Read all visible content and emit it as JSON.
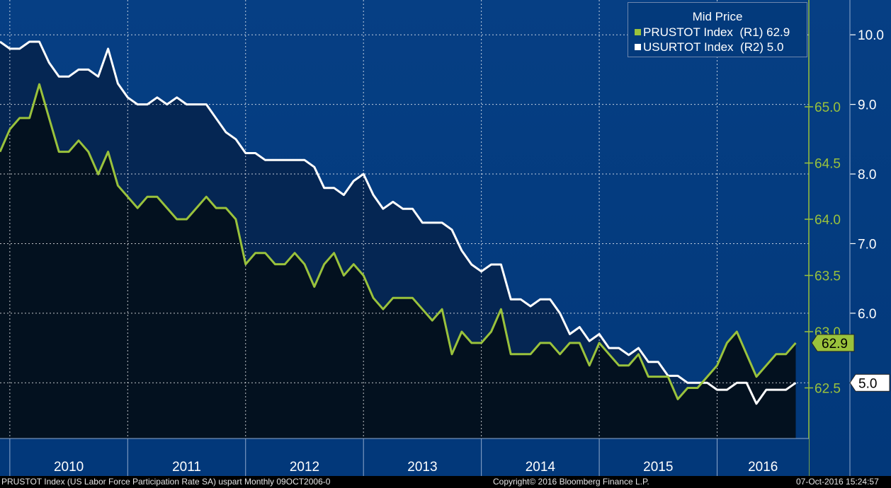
{
  "chart_data": {
    "type": "line",
    "legend_title": "Mid Price",
    "legend_position": "top-right",
    "grid": true,
    "x_labels": [
      "2010",
      "2011",
      "2012",
      "2013",
      "2014",
      "2015",
      "2016"
    ],
    "xlim": [
      "2009-12",
      "2016-09"
    ],
    "axes": {
      "R1": {
        "ticks": [
          "62.5",
          "63.0",
          "63.5",
          "64.0",
          "64.5",
          "65.0"
        ],
        "ylim": [
          62.05,
          65.95
        ]
      },
      "R2": {
        "ticks": [
          "5.0",
          "6.0",
          "7.0",
          "8.0",
          "9.0",
          "10.0"
        ],
        "ylim": [
          4.2,
          10.5
        ]
      }
    },
    "series": [
      {
        "name": "PRUSTOT Index  (R1) 62.9",
        "axis": "R1",
        "color": "#9ac23c",
        "last_value": "62.9",
        "x_start": "2009-12",
        "values": [
          64.6,
          64.8,
          64.9,
          64.9,
          65.2,
          64.9,
          64.6,
          64.6,
          64.7,
          64.6,
          64.4,
          64.6,
          64.3,
          64.2,
          64.1,
          64.2,
          64.2,
          64.1,
          64.0,
          64.0,
          64.1,
          64.2,
          64.1,
          64.1,
          64.0,
          63.6,
          63.7,
          63.7,
          63.6,
          63.6,
          63.7,
          63.6,
          63.4,
          63.6,
          63.7,
          63.5,
          63.6,
          63.5,
          63.3,
          63.2,
          63.3,
          63.3,
          63.3,
          63.2,
          63.1,
          63.2,
          62.8,
          63.0,
          62.9,
          62.9,
          63.0,
          63.2,
          62.8,
          62.8,
          62.8,
          62.9,
          62.9,
          62.8,
          62.9,
          62.9,
          62.7,
          62.9,
          62.8,
          62.7,
          62.7,
          62.8,
          62.6,
          62.6,
          62.6,
          62.4,
          62.5,
          62.5,
          62.6,
          62.7,
          62.9,
          63.0,
          62.8,
          62.6,
          62.7,
          62.8,
          62.8,
          62.9
        ]
      },
      {
        "name": "USURTOT Index  (R2) 5.0",
        "axis": "R2",
        "color": "#ffffff",
        "last_value": "5.0",
        "x_start": "2009-12",
        "values": [
          9.9,
          9.8,
          9.8,
          9.9,
          9.9,
          9.6,
          9.4,
          9.4,
          9.5,
          9.5,
          9.4,
          9.8,
          9.3,
          9.1,
          9.0,
          9.0,
          9.1,
          9.0,
          9.1,
          9.0,
          9.0,
          9.0,
          8.8,
          8.6,
          8.5,
          8.3,
          8.3,
          8.2,
          8.2,
          8.2,
          8.2,
          8.2,
          8.1,
          7.8,
          7.8,
          7.7,
          7.9,
          8.0,
          7.7,
          7.5,
          7.6,
          7.5,
          7.5,
          7.3,
          7.3,
          7.3,
          7.2,
          6.9,
          6.7,
          6.6,
          6.7,
          6.7,
          6.2,
          6.2,
          6.1,
          6.2,
          6.2,
          6.0,
          5.7,
          5.8,
          5.6,
          5.7,
          5.5,
          5.5,
          5.4,
          5.5,
          5.3,
          5.3,
          5.1,
          5.1,
          5.0,
          5.0,
          5.0,
          4.9,
          4.9,
          5.0,
          5.0,
          4.7,
          4.9,
          4.9,
          4.9,
          5.0
        ]
      }
    ]
  },
  "footer": {
    "left": "PRUSTOT Index (US Labor Force Participation Rate SA) uspart  Monthly 09OCT2006-0",
    "center": "Copyright© 2016 Bloomberg Finance L.P.",
    "right": "07-Oct-2016 15:24:57"
  },
  "colors": {
    "panel_bg": "#063f84",
    "panel_bg_bottom": "#02387a",
    "grid": "#ffffff",
    "dark_fill": "#03111f",
    "mid_fill": "#052653",
    "green": "#9ac23c",
    "white": "#ffffff"
  }
}
